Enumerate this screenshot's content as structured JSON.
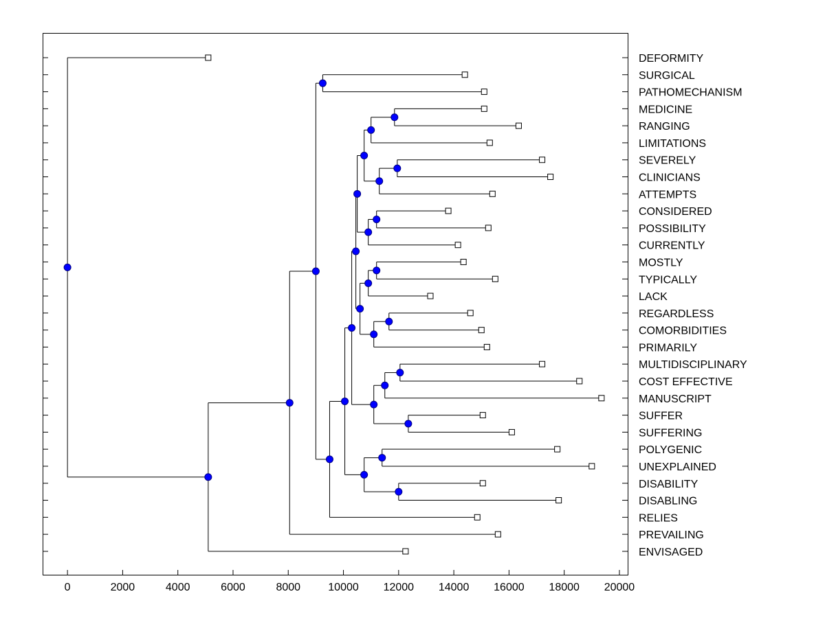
{
  "chart_data": {
    "type": "dendrogram",
    "title": "",
    "xlabel": "",
    "ylabel": "",
    "xlim": [
      -900,
      20300
    ],
    "x_ticks": [
      0,
      2000,
      4000,
      6000,
      8000,
      10000,
      12000,
      14000,
      16000,
      18000,
      20000
    ],
    "grid": false,
    "colors": {
      "node_fill": "#0000ff",
      "node_stroke": "#000080",
      "line": "#000000",
      "leaf_fill": "#ffffff"
    },
    "leaves": [
      {
        "label": "DEFORMITY",
        "value": 5100
      },
      {
        "label": "SURGICAL",
        "value": 14400
      },
      {
        "label": "PATHOMECHANISM",
        "value": 15100
      },
      {
        "label": "MEDICINE",
        "value": 15100
      },
      {
        "label": "RANGING",
        "value": 16350
      },
      {
        "label": "LIMITATIONS",
        "value": 15300
      },
      {
        "label": "SEVERELY",
        "value": 17200
      },
      {
        "label": "CLINICIANS",
        "value": 17500
      },
      {
        "label": "ATTEMPTS",
        "value": 15400
      },
      {
        "label": "CONSIDERED",
        "value": 13800
      },
      {
        "label": "POSSIBILITY",
        "value": 15250
      },
      {
        "label": "CURRENTLY",
        "value": 14150
      },
      {
        "label": "MOSTLY",
        "value": 14350
      },
      {
        "label": "TYPICALLY",
        "value": 15500
      },
      {
        "label": "LACK",
        "value": 13150
      },
      {
        "label": "REGARDLESS",
        "value": 14600
      },
      {
        "label": "COMORBIDITIES",
        "value": 15000
      },
      {
        "label": "PRIMARILY",
        "value": 15200
      },
      {
        "label": "MULTIDISCIPLINARY",
        "value": 17200
      },
      {
        "label": "COST EFFECTIVE",
        "value": 18550
      },
      {
        "label": "MANUSCRIPT",
        "value": 19350
      },
      {
        "label": "SUFFER",
        "value": 15050
      },
      {
        "label": "SUFFERING",
        "value": 16100
      },
      {
        "label": "POLYGENIC",
        "value": 17750
      },
      {
        "label": "UNEXPLAINED",
        "value": 19000
      },
      {
        "label": "DISABILITY",
        "value": 15050
      },
      {
        "label": "DISABLING",
        "value": 17800
      },
      {
        "label": "RELIES",
        "value": 14850
      },
      {
        "label": "PREVAILING",
        "value": 15600
      },
      {
        "label": "ENVISAGED",
        "value": 12250
      }
    ],
    "merges": [
      {
        "id": "n1",
        "value": 11850,
        "children": [
          "L3",
          "L4"
        ]
      },
      {
        "id": "n2",
        "value": 11000,
        "children": [
          "n1",
          "L5"
        ]
      },
      {
        "id": "n3",
        "value": 11950,
        "children": [
          "L6",
          "L7"
        ]
      },
      {
        "id": "n4",
        "value": 11300,
        "children": [
          "n3",
          "L8"
        ]
      },
      {
        "id": "n5",
        "value": 10750,
        "children": [
          "n2",
          "n4"
        ]
      },
      {
        "id": "n6",
        "value": 11200,
        "children": [
          "L9",
          "L10"
        ]
      },
      {
        "id": "n7",
        "value": 10900,
        "children": [
          "n6",
          "L11"
        ]
      },
      {
        "id": "n8",
        "value": 10500,
        "children": [
          "n5",
          "n7"
        ]
      },
      {
        "id": "n9",
        "value": 11200,
        "children": [
          "L12",
          "L13"
        ]
      },
      {
        "id": "n10",
        "value": 10900,
        "children": [
          "n9",
          "L14"
        ]
      },
      {
        "id": "n11",
        "value": 11650,
        "children": [
          "L15",
          "L16"
        ]
      },
      {
        "id": "n12",
        "value": 11100,
        "children": [
          "n11",
          "L17"
        ]
      },
      {
        "id": "n13",
        "value": 10600,
        "children": [
          "n10",
          "n12"
        ]
      },
      {
        "id": "n14",
        "value": 10450,
        "children": [
          "n8",
          "n13"
        ]
      },
      {
        "id": "n15",
        "value": 12050,
        "children": [
          "L18",
          "L19"
        ]
      },
      {
        "id": "n16",
        "value": 11500,
        "children": [
          "n15",
          "L20"
        ]
      },
      {
        "id": "n17",
        "value": 12350,
        "children": [
          "L21",
          "L22"
        ]
      },
      {
        "id": "n18",
        "value": 11100,
        "children": [
          "n16",
          "n17"
        ]
      },
      {
        "id": "n19",
        "value": 10300,
        "children": [
          "n14",
          "n18"
        ]
      },
      {
        "id": "n20",
        "value": 11400,
        "children": [
          "L23",
          "L24"
        ]
      },
      {
        "id": "n21",
        "value": 12000,
        "children": [
          "L25",
          "L26"
        ]
      },
      {
        "id": "n22",
        "value": 10750,
        "children": [
          "n20",
          "n21"
        ]
      },
      {
        "id": "n23",
        "value": 10050,
        "children": [
          "n19",
          "n22"
        ]
      },
      {
        "id": "n24",
        "value": 9500,
        "children": [
          "n23",
          "L27"
        ]
      },
      {
        "id": "n25",
        "value": 9250,
        "children": [
          "L1",
          "L2"
        ]
      },
      {
        "id": "n26",
        "value": 9000,
        "children": [
          "n25",
          "n24"
        ]
      },
      {
        "id": "n27",
        "value": 8050,
        "children": [
          "n26",
          "L28"
        ]
      },
      {
        "id": "n28",
        "value": 5100,
        "children": [
          "n27",
          "L29"
        ]
      },
      {
        "id": "root",
        "value": 0,
        "children": [
          "L0",
          "n28"
        ]
      }
    ]
  }
}
